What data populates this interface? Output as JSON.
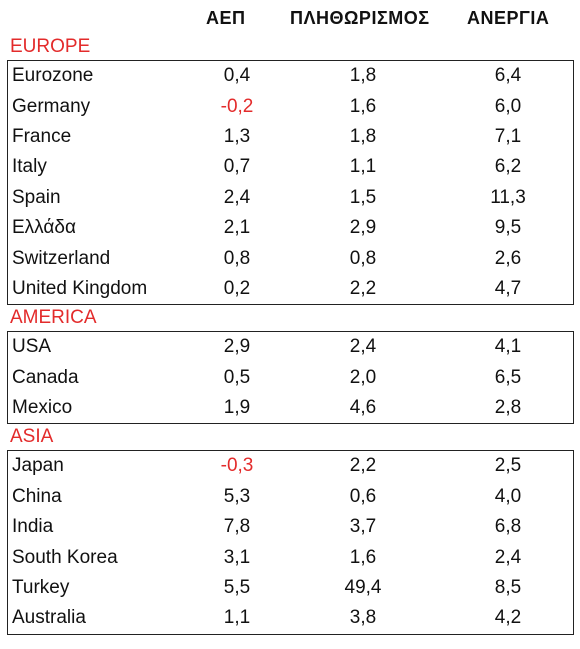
{
  "headers": {
    "gdp": "ΑΕΠ",
    "population": "ΠΛΗΘΩΡΙΣΜΟΣ",
    "unemployment": "ΑΝΕΡΓΙΑ"
  },
  "colors": {
    "region_label": "#e32b2b",
    "negative_value": "#e32b2b"
  },
  "regions": [
    {
      "label": "EUROPE",
      "rows": [
        {
          "name": "Eurozone",
          "gdp": "0,4",
          "pop": "1,8",
          "unemp": "6,4"
        },
        {
          "name": "Germany",
          "gdp": "-0,2",
          "pop": "1,6",
          "unemp": "6,0"
        },
        {
          "name": "France",
          "gdp": "1,3",
          "pop": "1,8",
          "unemp": "7,1"
        },
        {
          "name": "Italy",
          "gdp": "0,7",
          "pop": "1,1",
          "unemp": "6,2"
        },
        {
          "name": "Spain",
          "gdp": "2,4",
          "pop": "1,5",
          "unemp": "11,3"
        },
        {
          "name": "Ελλάδα",
          "gdp": "2,1",
          "pop": "2,9",
          "unemp": "9,5"
        },
        {
          "name": "Switzerland",
          "gdp": "0,8",
          "pop": "0,8",
          "unemp": "2,6"
        },
        {
          "name": "United Kingdom",
          "gdp": "0,2",
          "pop": "2,2",
          "unemp": "4,7"
        }
      ]
    },
    {
      "label": "AMERICA",
      "rows": [
        {
          "name": "USA",
          "gdp": "2,9",
          "pop": "2,4",
          "unemp": "4,1"
        },
        {
          "name": "Canada",
          "gdp": "0,5",
          "pop": "2,0",
          "unemp": "6,5"
        },
        {
          "name": "Mexico",
          "gdp": "1,9",
          "pop": "4,6",
          "unemp": "2,8"
        }
      ]
    },
    {
      "label": "ASIA",
      "rows": [
        {
          "name": "Japan",
          "gdp": "-0,3",
          "pop": "2,2",
          "unemp": "2,5"
        },
        {
          "name": "China",
          "gdp": "5,3",
          "pop": "0,6",
          "unemp": "4,0"
        },
        {
          "name": "India",
          "gdp": "7,8",
          "pop": "3,7",
          "unemp": "6,8"
        },
        {
          "name": "South Korea",
          "gdp": "3,1",
          "pop": "1,6",
          "unemp": "2,4"
        },
        {
          "name": "Turkey",
          "gdp": "5,5",
          "pop": "49,4",
          "unemp": "8,5"
        },
        {
          "name": "Australia",
          "gdp": "1,1",
          "pop": "3,8",
          "unemp": "4,2"
        }
      ]
    }
  ]
}
